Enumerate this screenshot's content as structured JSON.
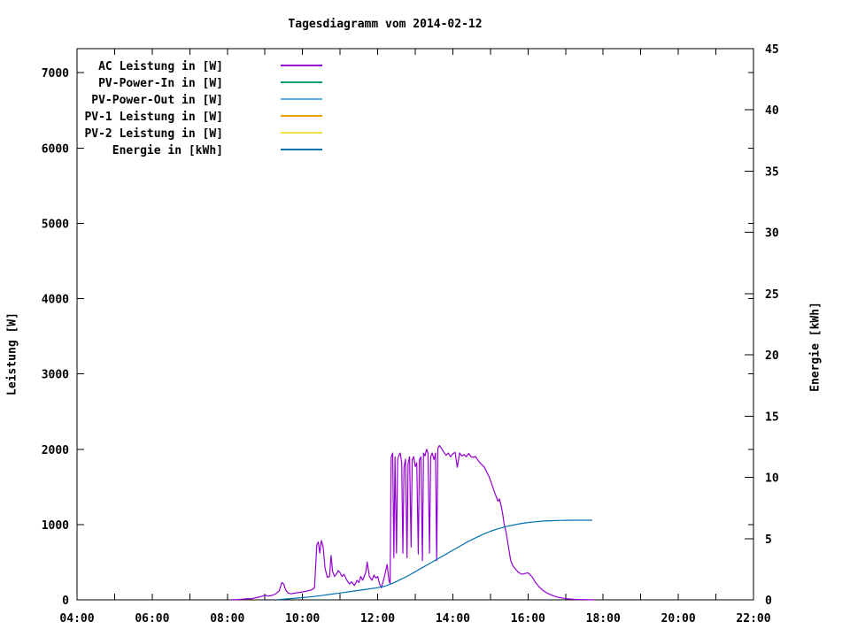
{
  "chart_data": {
    "type": "line",
    "title": "Tagesdiagramm vom 2014-02-12",
    "xlabel": "",
    "ylabel": "Leistung [W]",
    "y2label": "Energie [kWh]",
    "x_range_hours": [
      4,
      22
    ],
    "y_left_range": [
      0,
      7320
    ],
    "y_right_range": [
      0,
      45
    ],
    "y_left_ticks": [
      0,
      1000,
      2000,
      3000,
      4000,
      5000,
      6000,
      7000
    ],
    "y_right_ticks": [
      0,
      5,
      10,
      15,
      20,
      25,
      30,
      35,
      40,
      45
    ],
    "x_minor_tick_hours": [
      4,
      5,
      6,
      7,
      8,
      9,
      10,
      11,
      12,
      13,
      14,
      15,
      16,
      17,
      18,
      19,
      20,
      21,
      22
    ],
    "x_labeled_ticks": [
      {
        "hour": 4,
        "label": "04:00"
      },
      {
        "hour": 6,
        "label": "06:00"
      },
      {
        "hour": 8,
        "label": "08:00"
      },
      {
        "hour": 10,
        "label": "10:00"
      },
      {
        "hour": 12,
        "label": "12:00"
      },
      {
        "hour": 14,
        "label": "14:00"
      },
      {
        "hour": 16,
        "label": "16:00"
      },
      {
        "hour": 18,
        "label": "18:00"
      },
      {
        "hour": 20,
        "label": "20:00"
      },
      {
        "hour": 22,
        "label": "22:00"
      }
    ],
    "grid": false,
    "legend_position": "top-left-inside",
    "series": [
      {
        "name": "AC Leistung in [W]",
        "color": "#9400d3",
        "axis": "left",
        "visible_curve": true,
        "points": [
          [
            8.1,
            2
          ],
          [
            8.3,
            5
          ],
          [
            8.45,
            10
          ],
          [
            8.55,
            18
          ],
          [
            8.62,
            12
          ],
          [
            8.72,
            25
          ],
          [
            8.82,
            35
          ],
          [
            8.92,
            48
          ],
          [
            9.02,
            60
          ],
          [
            9.08,
            50
          ],
          [
            9.18,
            58
          ],
          [
            9.28,
            78
          ],
          [
            9.38,
            120
          ],
          [
            9.45,
            230
          ],
          [
            9.5,
            210
          ],
          [
            9.55,
            130
          ],
          [
            9.62,
            90
          ],
          [
            9.7,
            80
          ],
          [
            9.78,
            88
          ],
          [
            9.86,
            95
          ],
          [
            9.95,
            100
          ],
          [
            10.05,
            110
          ],
          [
            10.15,
            120
          ],
          [
            10.25,
            135
          ],
          [
            10.32,
            160
          ],
          [
            10.38,
            730
          ],
          [
            10.42,
            770
          ],
          [
            10.46,
            620
          ],
          [
            10.5,
            790
          ],
          [
            10.55,
            700
          ],
          [
            10.6,
            420
          ],
          [
            10.66,
            300
          ],
          [
            10.72,
            310
          ],
          [
            10.76,
            590
          ],
          [
            10.8,
            380
          ],
          [
            10.85,
            310
          ],
          [
            10.9,
            340
          ],
          [
            10.95,
            390
          ],
          [
            11.0,
            360
          ],
          [
            11.05,
            310
          ],
          [
            11.1,
            340
          ],
          [
            11.18,
            260
          ],
          [
            11.25,
            210
          ],
          [
            11.3,
            240
          ],
          [
            11.38,
            190
          ],
          [
            11.45,
            260
          ],
          [
            11.5,
            230
          ],
          [
            11.55,
            310
          ],
          [
            11.6,
            260
          ],
          [
            11.68,
            360
          ],
          [
            11.72,
            500
          ],
          [
            11.78,
            310
          ],
          [
            11.85,
            260
          ],
          [
            11.9,
            330
          ],
          [
            11.95,
            290
          ],
          [
            12.0,
            310
          ],
          [
            12.05,
            210
          ],
          [
            12.1,
            160
          ],
          [
            12.18,
            310
          ],
          [
            12.25,
            470
          ],
          [
            12.3,
            260
          ],
          [
            12.33,
            210
          ],
          [
            12.36,
            1890
          ],
          [
            12.4,
            1950
          ],
          [
            12.43,
            560
          ],
          [
            12.46,
            1900
          ],
          [
            12.5,
            620
          ],
          [
            12.53,
            1860
          ],
          [
            12.56,
            1910
          ],
          [
            12.6,
            1950
          ],
          [
            12.64,
            1820
          ],
          [
            12.67,
            620
          ],
          [
            12.7,
            1760
          ],
          [
            12.74,
            1870
          ],
          [
            12.78,
            560
          ],
          [
            12.81,
            1810
          ],
          [
            12.85,
            1900
          ],
          [
            12.89,
            700
          ],
          [
            12.92,
            1860
          ],
          [
            12.96,
            1900
          ],
          [
            13.0,
            1770
          ],
          [
            13.04,
            1820
          ],
          [
            13.08,
            610
          ],
          [
            13.11,
            1860
          ],
          [
            13.15,
            1900
          ],
          [
            13.19,
            520
          ],
          [
            13.22,
            1950
          ],
          [
            13.26,
            1910
          ],
          [
            13.3,
            2000
          ],
          [
            13.34,
            1950
          ],
          [
            13.38,
            620
          ],
          [
            13.41,
            1900
          ],
          [
            13.45,
            1950
          ],
          [
            13.5,
            1860
          ],
          [
            13.54,
            1950
          ],
          [
            13.57,
            520
          ],
          [
            13.6,
            2010
          ],
          [
            13.64,
            2050
          ],
          [
            13.7,
            2010
          ],
          [
            13.76,
            1960
          ],
          [
            13.82,
            1920
          ],
          [
            13.88,
            1950
          ],
          [
            13.94,
            1900
          ],
          [
            14.0,
            1940
          ],
          [
            14.06,
            1960
          ],
          [
            14.12,
            1760
          ],
          [
            14.18,
            1950
          ],
          [
            14.24,
            1910
          ],
          [
            14.3,
            1930
          ],
          [
            14.36,
            1900
          ],
          [
            14.42,
            1945
          ],
          [
            14.48,
            1905
          ],
          [
            14.54,
            1890
          ],
          [
            14.6,
            1905
          ],
          [
            14.66,
            1860
          ],
          [
            14.72,
            1820
          ],
          [
            14.78,
            1790
          ],
          [
            14.84,
            1760
          ],
          [
            14.9,
            1700
          ],
          [
            14.96,
            1640
          ],
          [
            15.02,
            1560
          ],
          [
            15.08,
            1470
          ],
          [
            15.14,
            1390
          ],
          [
            15.2,
            1310
          ],
          [
            15.24,
            1340
          ],
          [
            15.28,
            1260
          ],
          [
            15.32,
            1160
          ],
          [
            15.36,
            1020
          ],
          [
            15.42,
            890
          ],
          [
            15.48,
            700
          ],
          [
            15.54,
            520
          ],
          [
            15.6,
            450
          ],
          [
            15.68,
            400
          ],
          [
            15.76,
            360
          ],
          [
            15.84,
            340
          ],
          [
            15.92,
            350
          ],
          [
            16.0,
            360
          ],
          [
            16.06,
            330
          ],
          [
            16.12,
            300
          ],
          [
            16.2,
            230
          ],
          [
            16.3,
            170
          ],
          [
            16.4,
            125
          ],
          [
            16.5,
            92
          ],
          [
            16.6,
            68
          ],
          [
            16.72,
            46
          ],
          [
            16.84,
            30
          ],
          [
            16.96,
            20
          ],
          [
            17.1,
            12
          ],
          [
            17.25,
            6
          ],
          [
            17.45,
            3
          ],
          [
            17.75,
            1
          ]
        ]
      },
      {
        "name": "PV-Power-In in [W]",
        "color": "#009e73",
        "axis": "left",
        "visible_curve": false,
        "points": []
      },
      {
        "name": "PV-Power-Out in [W]",
        "color": "#56b4e9",
        "axis": "left",
        "visible_curve": false,
        "points": []
      },
      {
        "name": "PV-1 Leistung in [W]",
        "color": "#e69f00",
        "axis": "left",
        "visible_curve": false,
        "points": []
      },
      {
        "name": "PV-2 Leistung in [W]",
        "color": "#f0e442",
        "axis": "left",
        "visible_curve": false,
        "points": []
      },
      {
        "name": "Energie in [kWh]",
        "color": "#0072b2",
        "axis": "right",
        "visible_curve": true,
        "points": [
          [
            9.35,
            0.02
          ],
          [
            9.6,
            0.08
          ],
          [
            9.9,
            0.15
          ],
          [
            10.2,
            0.24
          ],
          [
            10.5,
            0.35
          ],
          [
            10.8,
            0.48
          ],
          [
            11.1,
            0.6
          ],
          [
            11.4,
            0.73
          ],
          [
            11.7,
            0.86
          ],
          [
            12.0,
            1.0
          ],
          [
            12.2,
            1.12
          ],
          [
            12.4,
            1.35
          ],
          [
            12.6,
            1.65
          ],
          [
            12.8,
            1.95
          ],
          [
            13.0,
            2.3
          ],
          [
            13.2,
            2.65
          ],
          [
            13.4,
            3.0
          ],
          [
            13.6,
            3.35
          ],
          [
            13.8,
            3.7
          ],
          [
            14.0,
            4.05
          ],
          [
            14.2,
            4.4
          ],
          [
            14.4,
            4.75
          ],
          [
            14.6,
            5.05
          ],
          [
            14.8,
            5.35
          ],
          [
            15.0,
            5.6
          ],
          [
            15.2,
            5.8
          ],
          [
            15.4,
            5.97
          ],
          [
            15.6,
            6.1
          ],
          [
            15.8,
            6.22
          ],
          [
            16.0,
            6.31
          ],
          [
            16.2,
            6.38
          ],
          [
            16.4,
            6.43
          ],
          [
            16.6,
            6.46
          ],
          [
            16.8,
            6.48
          ],
          [
            17.0,
            6.49
          ],
          [
            17.2,
            6.5
          ],
          [
            17.45,
            6.5
          ],
          [
            17.7,
            6.5
          ]
        ]
      }
    ]
  },
  "colors": {
    "frame": "#000000",
    "background": "#ffffff",
    "text": "#000000"
  }
}
